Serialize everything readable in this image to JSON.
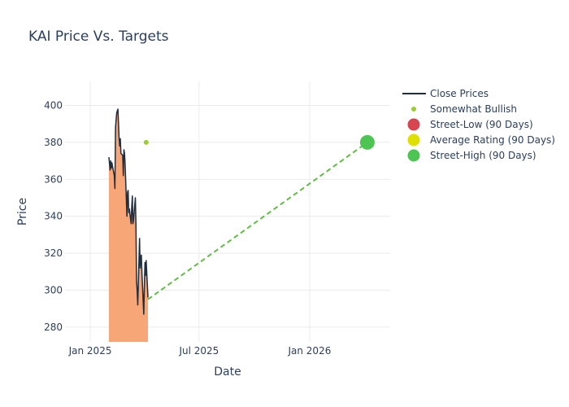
{
  "chart_data": {
    "type": "line",
    "title": "KAI Price Vs. Targets",
    "xlabel": "Date",
    "ylabel": "Price",
    "xlim": [
      "2024-11-20",
      "2026-05-15"
    ],
    "ylim": [
      272,
      413
    ],
    "x_ticks": [
      {
        "date": "2025-01-01",
        "label": "Jan 2025"
      },
      {
        "date": "2025-07-01",
        "label": "Jul 2025"
      },
      {
        "date": "2026-01-01",
        "label": "Jan 2026"
      }
    ],
    "y_ticks": [
      280,
      300,
      320,
      340,
      360,
      380,
      400
    ],
    "grid": true,
    "legend_position": "top-right",
    "colors": {
      "close": "#1f2d3d",
      "fill": "#f7a677",
      "bullish": "#9acd32",
      "street_low": "#d64550",
      "average": "#e0e000",
      "street_high": "#4cc552",
      "target_line": "#62bb47",
      "grid": "#ebebeb"
    },
    "series": [
      {
        "name": "Close Prices",
        "kind": "line-area",
        "points": [
          [
            "2025-02-01",
            372
          ],
          [
            "2025-02-03",
            365
          ],
          [
            "2025-02-04",
            370
          ],
          [
            "2025-02-05",
            366
          ],
          [
            "2025-02-06",
            369
          ],
          [
            "2025-02-07",
            367
          ],
          [
            "2025-02-10",
            362
          ],
          [
            "2025-02-11",
            355
          ],
          [
            "2025-02-12",
            388
          ],
          [
            "2025-02-14",
            396
          ],
          [
            "2025-02-16",
            398
          ],
          [
            "2025-02-18",
            382
          ],
          [
            "2025-02-19",
            378
          ],
          [
            "2025-02-20",
            382
          ],
          [
            "2025-02-21",
            374
          ],
          [
            "2025-02-24",
            373
          ],
          [
            "2025-02-25",
            362
          ],
          [
            "2025-02-26",
            376
          ],
          [
            "2025-02-27",
            374
          ],
          [
            "2025-02-28",
            368
          ],
          [
            "2025-03-03",
            340
          ],
          [
            "2025-03-04",
            353
          ],
          [
            "2025-03-05",
            354
          ],
          [
            "2025-03-06",
            342
          ],
          [
            "2025-03-07",
            344
          ],
          [
            "2025-03-10",
            336
          ],
          [
            "2025-03-11",
            345
          ],
          [
            "2025-03-12",
            351
          ],
          [
            "2025-03-13",
            336
          ],
          [
            "2025-03-14",
            338
          ],
          [
            "2025-03-17",
            350
          ],
          [
            "2025-03-18",
            336
          ],
          [
            "2025-03-19",
            305
          ],
          [
            "2025-03-20",
            300
          ],
          [
            "2025-03-21",
            292
          ],
          [
            "2025-03-24",
            328
          ],
          [
            "2025-03-25",
            312
          ],
          [
            "2025-03-26",
            318
          ],
          [
            "2025-03-27",
            319
          ],
          [
            "2025-03-28",
            309
          ],
          [
            "2025-03-31",
            287
          ],
          [
            "2025-04-01",
            302
          ],
          [
            "2025-04-02",
            315
          ],
          [
            "2025-04-03",
            308
          ],
          [
            "2025-04-04",
            316
          ],
          [
            "2025-04-07",
            296
          ]
        ]
      },
      {
        "name": "Somewhat Bullish",
        "kind": "points",
        "points": [
          [
            "2025-04-04",
            380
          ]
        ]
      },
      {
        "name": "Street-Low (90 Days)",
        "kind": "marker",
        "points": []
      },
      {
        "name": "Average Rating (90 Days)",
        "kind": "marker",
        "points": []
      },
      {
        "name": "Street-High (90 Days)",
        "kind": "marker",
        "points": [
          [
            "2026-04-07",
            380
          ]
        ]
      },
      {
        "kind": "dashed-line",
        "points": [
          [
            "2025-04-07",
            295
          ],
          [
            "2026-04-07",
            380
          ]
        ]
      }
    ]
  }
}
